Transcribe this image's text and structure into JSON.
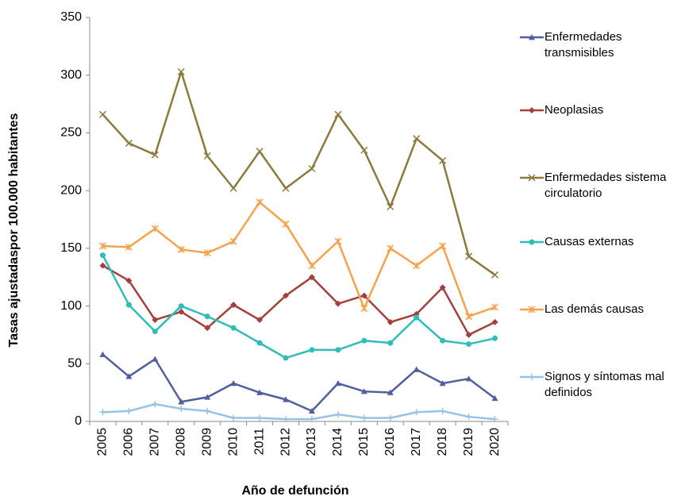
{
  "chart_data": {
    "type": "line",
    "y_label": "Tasas ajustadaspor 100.000 habitantes",
    "x_label": "Año de defunción",
    "categories": [
      "2005",
      "2006",
      "2007",
      "2008",
      "2009",
      "2010",
      "2011",
      "2012",
      "2013",
      "2014",
      "2015",
      "2016",
      "2017",
      "2018",
      "2019",
      "2020"
    ],
    "ylim": [
      0,
      350
    ],
    "yticks": [
      0,
      50,
      100,
      150,
      200,
      250,
      300,
      350
    ],
    "grid": false,
    "legend": "right",
    "series": [
      {
        "name": "Enfermedades transmisibles",
        "color": "#4f5fa0",
        "marker": "triangle",
        "values": [
          58,
          39,
          54,
          17,
          21,
          33,
          25,
          19,
          9,
          33,
          26,
          25,
          45,
          33,
          37,
          20
        ]
      },
      {
        "name": "Neoplasias",
        "color": "#a3403d",
        "marker": "diamond",
        "values": [
          135,
          122,
          88,
          95,
          81,
          101,
          88,
          109,
          125,
          102,
          109,
          86,
          93,
          116,
          75,
          86
        ]
      },
      {
        "name": "Enfermedades sistema circulatorio",
        "color": "#8c7a3c",
        "marker": "x",
        "values": [
          266,
          241,
          231,
          303,
          230,
          202,
          234,
          202,
          219,
          266,
          235,
          186,
          245,
          226,
          143,
          127
        ]
      },
      {
        "name": "Causas externas",
        "color": "#2fbdb8",
        "marker": "circle",
        "values": [
          144,
          101,
          78,
          100,
          91,
          81,
          68,
          55,
          62,
          62,
          70,
          68,
          90,
          70,
          67,
          72
        ]
      },
      {
        "name": "Las demás causas",
        "color": "#f6a24c",
        "marker": "star",
        "values": [
          152,
          151,
          167,
          149,
          146,
          156,
          190,
          171,
          135,
          156,
          98,
          150,
          135,
          152,
          91,
          99
        ]
      },
      {
        "name": "Signos y síntomas mal definidos",
        "color": "#94c2ea",
        "marker": "plus",
        "values": [
          8,
          9,
          15,
          11,
          9,
          3,
          3,
          2,
          2,
          6,
          3,
          3,
          8,
          9,
          4,
          2
        ]
      }
    ]
  }
}
